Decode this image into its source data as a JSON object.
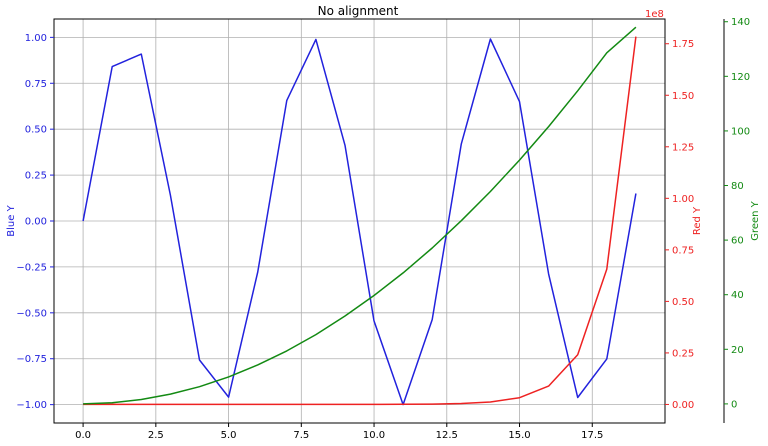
{
  "chart_data": {
    "type": "line",
    "title": "No alignment",
    "grid": true,
    "x": [
      0,
      1,
      2,
      3,
      4,
      5,
      6,
      7,
      8,
      9,
      10,
      11,
      12,
      13,
      14,
      15,
      16,
      17,
      18,
      19
    ],
    "xlim": [
      -1,
      20
    ],
    "x_ticks": [
      0.0,
      2.5,
      5.0,
      7.5,
      10.0,
      12.5,
      15.0,
      17.5
    ],
    "x_tick_labels": [
      "0.0",
      "2.5",
      "5.0",
      "7.5",
      "10.0",
      "12.5",
      "15.0",
      "17.5"
    ],
    "series": [
      {
        "axis": "left",
        "color": "#2222dd",
        "values": [
          0.0,
          0.841,
          0.909,
          0.141,
          -0.757,
          -0.959,
          -0.279,
          0.657,
          0.989,
          0.412,
          -0.544,
          -1.0,
          -0.537,
          0.42,
          0.991,
          0.65,
          -0.288,
          -0.961,
          -0.751,
          0.15
        ]
      },
      {
        "axis": "right",
        "color": "#ee2222",
        "values": [
          0,
          3,
          7,
          20,
          55,
          148,
          403,
          1097,
          2981,
          8103,
          22026,
          59874,
          162755,
          442413,
          1202604,
          3269017,
          8886111,
          24154953,
          65659969,
          178482301
        ]
      },
      {
        "axis": "right2",
        "color": "#138a13",
        "values": [
          0,
          0.4,
          1.6,
          3.6,
          6.3,
          9.9,
          14.3,
          19.4,
          25.4,
          32.2,
          39.7,
          48.0,
          57.1,
          67.1,
          77.8,
          89.3,
          101.6,
          114.7,
          128.6,
          138.0
        ]
      }
    ],
    "axes": {
      "left": {
        "label": "Blue Y",
        "color": "#2222dd",
        "ylim": [
          -1.1,
          1.1
        ],
        "ticks": [
          -1.0,
          -0.75,
          -0.5,
          -0.25,
          0.0,
          0.25,
          0.5,
          0.75,
          1.0
        ],
        "tick_labels": [
          "−1.00",
          "−0.75",
          "−0.50",
          "−0.25",
          "0.00",
          "0.25",
          "0.50",
          "0.75",
          "1.00"
        ]
      },
      "right": {
        "label": "Red Y",
        "color": "#ee2222",
        "offset_text": "1e8",
        "scale": 100000000,
        "ylim": [
          -0.09,
          1.87
        ],
        "ticks": [
          0.0,
          0.25,
          0.5,
          0.75,
          1.0,
          1.25,
          1.5,
          1.75
        ],
        "tick_labels": [
          "0.00",
          "0.25",
          "0.50",
          "0.75",
          "1.00",
          "1.25",
          "1.50",
          "1.75"
        ]
      },
      "right2": {
        "label": "Green Y",
        "color": "#138a13",
        "ylim": [
          -7,
          141
        ],
        "ticks": [
          0,
          20,
          40,
          60,
          80,
          100,
          120,
          140
        ],
        "tick_labels": [
          "0",
          "20",
          "40",
          "60",
          "80",
          "100",
          "120",
          "140"
        ]
      }
    }
  }
}
